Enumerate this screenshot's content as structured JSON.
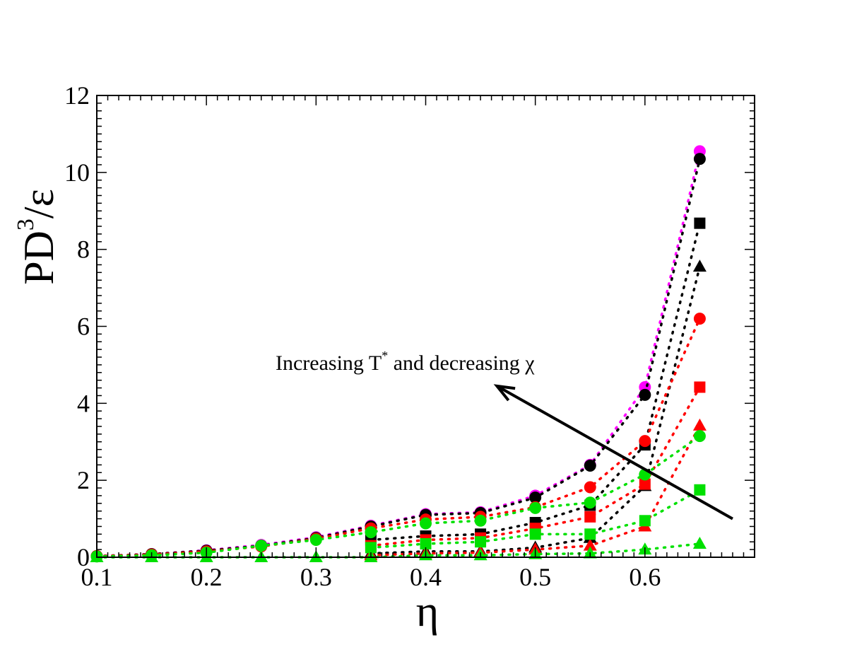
{
  "chart_data": {
    "type": "scatter",
    "title": "",
    "xlabel": "η",
    "ylabel": {
      "main": "PD",
      "sup": "3",
      "tail": "/ε"
    },
    "xlim": [
      0.1,
      0.7
    ],
    "ylim": [
      0,
      12
    ],
    "xticks": [
      "0.1",
      "0.2",
      "0.3",
      "0.4",
      "0.5",
      "0.6"
    ],
    "yticks": [
      "0",
      "2",
      "4",
      "6",
      "8",
      "10",
      "12"
    ],
    "annotation": {
      "prefix": "Increasing T",
      "sup": "*",
      "suffix": " and decreasing χ"
    },
    "arrow": {
      "from": [
        0.68,
        1.0
      ],
      "to": [
        0.465,
        4.45
      ]
    },
    "series": [
      {
        "name": "magenta-circle",
        "color": "#ff00ff",
        "marker": "circle",
        "line": true,
        "x": [
          0.1,
          0.15,
          0.2,
          0.25,
          0.3,
          0.35,
          0.4,
          0.45,
          0.5,
          0.55,
          0.6,
          0.65
        ],
        "y": [
          0.03,
          0.08,
          0.18,
          0.32,
          0.52,
          0.82,
          1.12,
          1.17,
          1.6,
          2.4,
          4.42,
          10.55
        ]
      },
      {
        "name": "black-circle",
        "color": "#000000",
        "marker": "circle",
        "line": true,
        "x": [
          0.1,
          0.15,
          0.2,
          0.25,
          0.3,
          0.35,
          0.4,
          0.45,
          0.5,
          0.55,
          0.6,
          0.65
        ],
        "y": [
          0.03,
          0.08,
          0.17,
          0.3,
          0.5,
          0.8,
          1.1,
          1.15,
          1.55,
          2.38,
          4.22,
          10.35
        ]
      },
      {
        "name": "black-square",
        "color": "#000000",
        "marker": "square",
        "line": true,
        "x": [
          0.35,
          0.4,
          0.45,
          0.5,
          0.55,
          0.6,
          0.65
        ],
        "y": [
          0.45,
          0.55,
          0.6,
          0.9,
          1.35,
          2.92,
          8.68
        ]
      },
      {
        "name": "black-triangle",
        "color": "#000000",
        "marker": "triangle",
        "line": true,
        "x": [
          0.35,
          0.4,
          0.45,
          0.5,
          0.55,
          0.6,
          0.65
        ],
        "y": [
          0.1,
          0.15,
          0.15,
          0.25,
          0.5,
          1.85,
          7.55
        ]
      },
      {
        "name": "red-circle",
        "color": "#ff0000",
        "marker": "circle",
        "line": true,
        "x": [
          0.1,
          0.15,
          0.2,
          0.25,
          0.3,
          0.35,
          0.4,
          0.45,
          0.5,
          0.55,
          0.6,
          0.65
        ],
        "y": [
          0.03,
          0.07,
          0.15,
          0.28,
          0.48,
          0.75,
          0.98,
          1.05,
          1.3,
          1.82,
          3.02,
          6.2
        ]
      },
      {
        "name": "red-square",
        "color": "#ff0000",
        "marker": "square",
        "line": true,
        "x": [
          0.35,
          0.4,
          0.45,
          0.5,
          0.55,
          0.6,
          0.65
        ],
        "y": [
          0.3,
          0.45,
          0.5,
          0.75,
          1.05,
          1.9,
          4.42
        ]
      },
      {
        "name": "red-triangle",
        "color": "#ff0000",
        "marker": "triangle",
        "line": true,
        "x": [
          0.35,
          0.4,
          0.45,
          0.5,
          0.55,
          0.6,
          0.65
        ],
        "y": [
          0.05,
          0.1,
          0.12,
          0.2,
          0.3,
          0.8,
          3.42
        ]
      },
      {
        "name": "green-circle",
        "color": "#00e000",
        "marker": "circle",
        "line": true,
        "x": [
          0.1,
          0.15,
          0.2,
          0.25,
          0.3,
          0.35,
          0.4,
          0.45,
          0.5,
          0.55,
          0.6,
          0.65
        ],
        "y": [
          0.02,
          0.05,
          0.12,
          0.3,
          0.45,
          0.65,
          0.88,
          0.95,
          1.28,
          1.42,
          2.15,
          3.15
        ]
      },
      {
        "name": "green-square",
        "color": "#00e000",
        "marker": "square",
        "line": true,
        "x": [
          0.35,
          0.4,
          0.45,
          0.5,
          0.55,
          0.6,
          0.65
        ],
        "y": [
          0.25,
          0.35,
          0.4,
          0.6,
          0.6,
          0.95,
          1.75
        ]
      },
      {
        "name": "green-triangle",
        "color": "#00e000",
        "marker": "triangle",
        "line": true,
        "x": [
          0.1,
          0.15,
          0.2,
          0.25,
          0.3,
          0.35,
          0.4,
          0.45,
          0.5,
          0.55,
          0.6,
          0.65
        ],
        "y": [
          0.0,
          0.0,
          0.0,
          0.0,
          0.0,
          0.0,
          0.05,
          0.05,
          0.08,
          0.1,
          0.2,
          0.35
        ]
      }
    ]
  }
}
